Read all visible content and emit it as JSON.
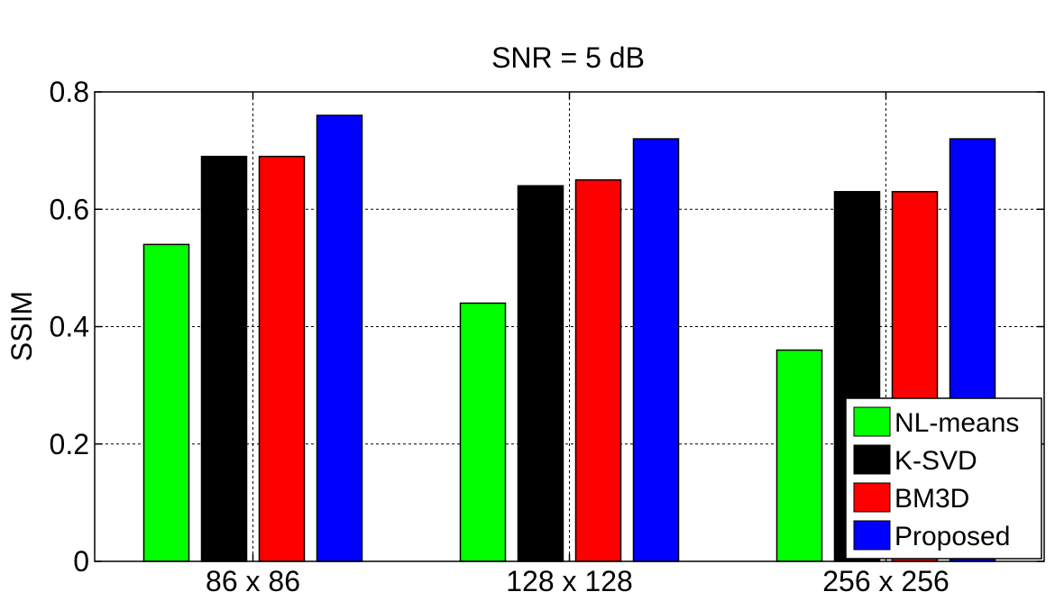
{
  "chart_data": {
    "type": "bar",
    "title": "SNR = 5 dB",
    "xlabel": "",
    "ylabel": "SSIM",
    "categories": [
      "86 x 86",
      "128 x 128",
      "256 x 256"
    ],
    "series": [
      {
        "name": "NL-means",
        "color": "#00ff00",
        "values": [
          0.54,
          0.44,
          0.36
        ]
      },
      {
        "name": "K-SVD",
        "color": "#000000",
        "values": [
          0.69,
          0.64,
          0.63
        ]
      },
      {
        "name": "BM3D",
        "color": "#ff0000",
        "values": [
          0.69,
          0.65,
          0.63
        ]
      },
      {
        "name": "Proposed",
        "color": "#0000ff",
        "values": [
          0.76,
          0.72,
          0.72
        ]
      }
    ],
    "ylim": [
      0,
      0.8
    ],
    "yticks": [
      0,
      0.2,
      0.4,
      0.6,
      0.8
    ],
    "ytick_labels": [
      "0",
      "0.2",
      "0.4",
      "0.6",
      "0.8"
    ],
    "grid": true,
    "legend_position": "bottom-right"
  }
}
